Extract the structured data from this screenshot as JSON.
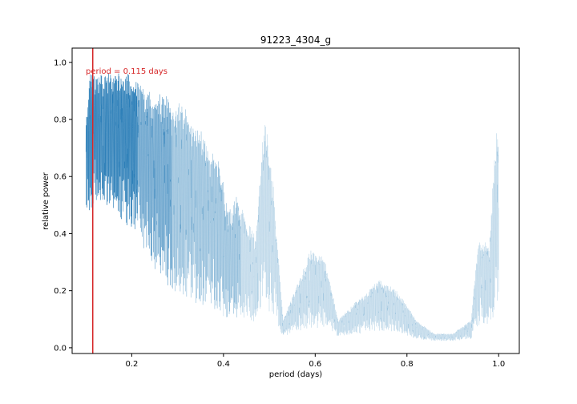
{
  "chart_data": {
    "type": "line",
    "title": "91223_4304_g",
    "xlabel": "period (days)",
    "ylabel": "relative power",
    "xlim": [
      0.07,
      1.045
    ],
    "ylim": [
      -0.02,
      1.05
    ],
    "x_ticks": [
      0.2,
      0.4,
      0.6,
      0.8,
      1.0
    ],
    "x_tick_labels": [
      "0.2",
      "0.4",
      "0.6",
      "0.8",
      "1.0"
    ],
    "y_ticks": [
      0.0,
      0.2,
      0.4,
      0.6,
      0.8,
      1.0
    ],
    "y_tick_labels": [
      "0.0",
      "0.2",
      "0.4",
      "0.6",
      "0.8",
      "1.0"
    ],
    "grid": false,
    "series": [
      {
        "color": "#1f77b4",
        "description": "periodogram with dense aliasing oscillations between lower and upper envelope",
        "x_range": [
          0.1,
          1.0
        ],
        "upper_envelope": [
          [
            0.1,
            0.82
          ],
          [
            0.11,
            0.97
          ],
          [
            0.13,
            0.97
          ],
          [
            0.15,
            0.97
          ],
          [
            0.17,
            0.97
          ],
          [
            0.19,
            0.97
          ],
          [
            0.21,
            0.95
          ],
          [
            0.23,
            0.92
          ],
          [
            0.25,
            0.87
          ],
          [
            0.27,
            0.92
          ],
          [
            0.29,
            0.85
          ],
          [
            0.31,
            0.88
          ],
          [
            0.33,
            0.8
          ],
          [
            0.35,
            0.78
          ],
          [
            0.37,
            0.7
          ],
          [
            0.39,
            0.67
          ],
          [
            0.41,
            0.48
          ],
          [
            0.43,
            0.54
          ],
          [
            0.45,
            0.45
          ],
          [
            0.47,
            0.4
          ],
          [
            0.49,
            0.82
          ],
          [
            0.51,
            0.55
          ],
          [
            0.53,
            0.1
          ],
          [
            0.56,
            0.22
          ],
          [
            0.59,
            0.35
          ],
          [
            0.62,
            0.32
          ],
          [
            0.65,
            0.1
          ],
          [
            0.7,
            0.18
          ],
          [
            0.74,
            0.24
          ],
          [
            0.78,
            0.2
          ],
          [
            0.82,
            0.1
          ],
          [
            0.86,
            0.05
          ],
          [
            0.9,
            0.05
          ],
          [
            0.94,
            0.1
          ],
          [
            0.955,
            0.38
          ],
          [
            0.98,
            0.37
          ],
          [
            0.995,
            0.8
          ],
          [
            1.0,
            0.8
          ]
        ],
        "lower_envelope": [
          [
            0.1,
            0.42
          ],
          [
            0.11,
            0.4
          ],
          [
            0.13,
            0.44
          ],
          [
            0.15,
            0.4
          ],
          [
            0.17,
            0.38
          ],
          [
            0.19,
            0.33
          ],
          [
            0.21,
            0.3
          ],
          [
            0.23,
            0.25
          ],
          [
            0.25,
            0.18
          ],
          [
            0.27,
            0.12
          ],
          [
            0.29,
            0.08
          ],
          [
            0.31,
            0.06
          ],
          [
            0.33,
            0.04
          ],
          [
            0.35,
            0.03
          ],
          [
            0.37,
            0.03
          ],
          [
            0.39,
            0.03
          ],
          [
            0.41,
            0.03
          ],
          [
            0.43,
            0.04
          ],
          [
            0.45,
            0.03
          ],
          [
            0.47,
            0.03
          ],
          [
            0.49,
            0.04
          ],
          [
            0.51,
            0.03
          ],
          [
            0.53,
            0.03
          ],
          [
            0.56,
            0.03
          ],
          [
            0.59,
            0.02
          ],
          [
            0.62,
            0.03
          ],
          [
            0.65,
            0.03
          ],
          [
            0.7,
            0.03
          ],
          [
            0.74,
            0.03
          ],
          [
            0.78,
            0.03
          ],
          [
            0.82,
            0.02
          ],
          [
            0.86,
            0.02
          ],
          [
            0.9,
            0.02
          ],
          [
            0.94,
            0.02
          ],
          [
            0.955,
            0.03
          ],
          [
            0.98,
            0.03
          ],
          [
            0.995,
            0.03
          ],
          [
            1.0,
            0.05
          ]
        ]
      }
    ],
    "annotations": [
      {
        "type": "vline",
        "x": 0.115,
        "color": "#d62728",
        "label": "period = 0.115 days",
        "label_y": 0.97
      }
    ]
  }
}
